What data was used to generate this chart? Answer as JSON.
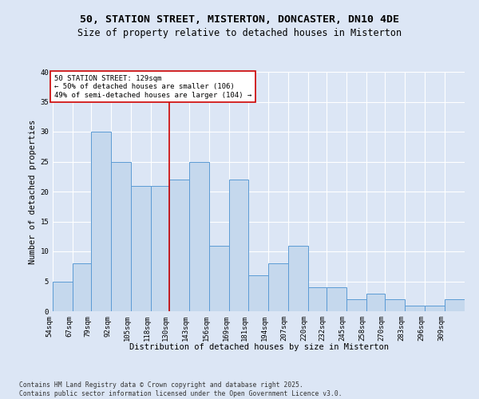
{
  "title_line1": "50, STATION STREET, MISTERTON, DONCASTER, DN10 4DE",
  "title_line2": "Size of property relative to detached houses in Misterton",
  "xlabel": "Distribution of detached houses by size in Misterton",
  "ylabel": "Number of detached properties",
  "bin_edges": [
    54,
    67,
    79,
    92,
    105,
    118,
    130,
    143,
    156,
    169,
    181,
    194,
    207,
    220,
    232,
    245,
    258,
    270,
    283,
    296,
    309
  ],
  "bar_heights": [
    5,
    8,
    30,
    25,
    21,
    21,
    22,
    25,
    11,
    22,
    6,
    8,
    11,
    4,
    4,
    2,
    3,
    2,
    1,
    1,
    2
  ],
  "bar_color": "#c5d8ed",
  "bar_edge_color": "#5b9bd5",
  "background_color": "#dce6f5",
  "grid_color": "#ffffff",
  "vline_x": 130,
  "vline_color": "#cc0000",
  "annotation_text": "50 STATION STREET: 129sqm\n← 50% of detached houses are smaller (106)\n49% of semi-detached houses are larger (104) →",
  "annotation_box_color": "#ffffff",
  "annotation_edge_color": "#cc0000",
  "annotation_fontsize": 6.5,
  "ylim": [
    0,
    40
  ],
  "yticks": [
    0,
    5,
    10,
    15,
    20,
    25,
    30,
    35,
    40
  ],
  "footer_text": "Contains HM Land Registry data © Crown copyright and database right 2025.\nContains public sector information licensed under the Open Government Licence v3.0.",
  "title_fontsize": 9.5,
  "subtitle_fontsize": 8.5,
  "axis_label_fontsize": 7.5,
  "tick_fontsize": 6.5
}
